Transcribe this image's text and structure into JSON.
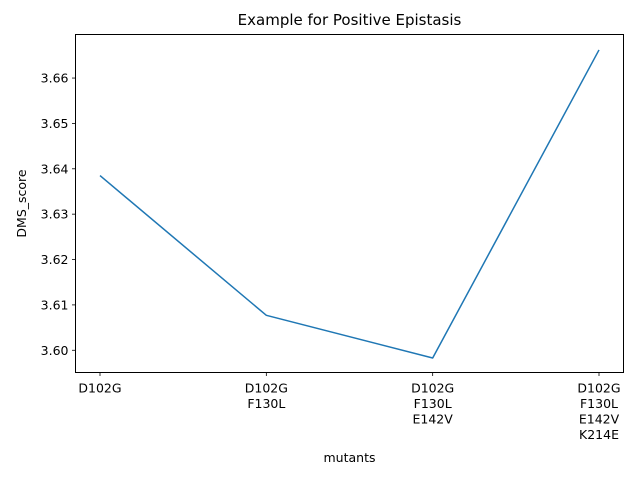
{
  "chart_data": {
    "type": "line",
    "title": "Example for Positive Epistasis",
    "xlabel": "mutants",
    "ylabel": "DMS_score",
    "categories": [
      [
        "D102G"
      ],
      [
        "D102G",
        "F130L"
      ],
      [
        "D102G",
        "F130L",
        "E142V"
      ],
      [
        "D102G",
        "F130L",
        "E142V",
        "K214E"
      ]
    ],
    "series": [
      {
        "values": [
          3.6385,
          3.6077,
          3.5983,
          3.6662
        ],
        "color": "#1f77b4"
      }
    ],
    "ylim": [
      3.5951,
      3.6696
    ],
    "yticks": [
      3.6,
      3.61,
      3.62,
      3.63,
      3.64,
      3.65,
      3.66
    ],
    "ytick_labels": [
      "3.60",
      "3.61",
      "3.62",
      "3.63",
      "3.64",
      "3.65",
      "3.66"
    ],
    "grid": false,
    "legend": false
  }
}
